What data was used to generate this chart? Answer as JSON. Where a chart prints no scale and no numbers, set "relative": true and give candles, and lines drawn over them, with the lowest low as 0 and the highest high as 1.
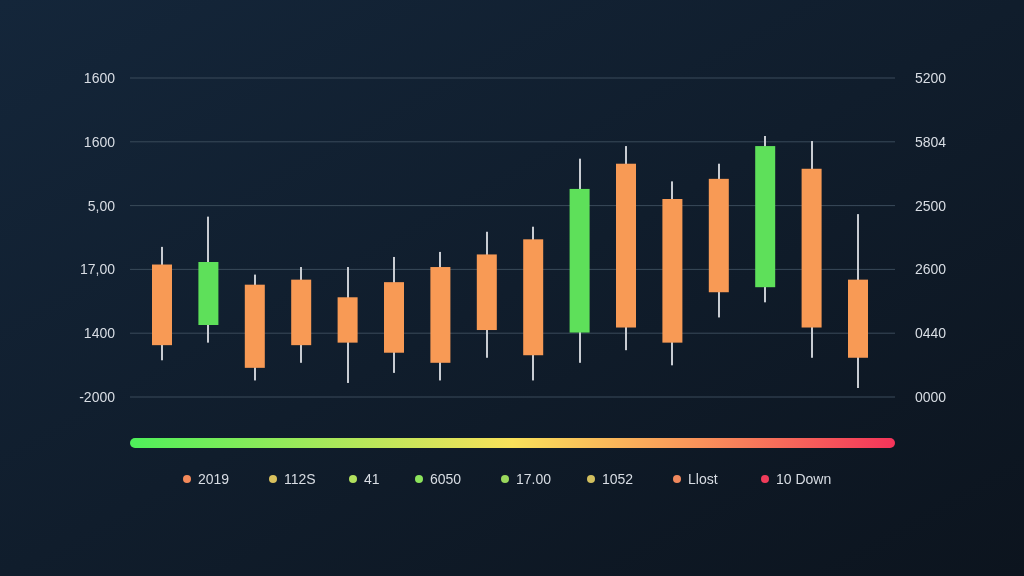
{
  "chart_data": {
    "type": "candlestick",
    "relative": true,
    "categories": [
      null,
      null,
      null,
      null,
      null,
      null,
      null,
      null,
      null,
      null,
      null,
      null,
      null,
      null,
      null,
      null
    ],
    "ohlc": [
      [
        0.49,
        0.56,
        0.11,
        0.17
      ],
      [
        0.25,
        0.68,
        0.18,
        0.5
      ],
      [
        0.41,
        0.45,
        0.03,
        0.08
      ],
      [
        0.43,
        0.48,
        0.1,
        0.17
      ],
      [
        0.36,
        0.48,
        0.02,
        0.18
      ],
      [
        0.42,
        0.52,
        0.06,
        0.14
      ],
      [
        0.48,
        0.54,
        0.03,
        0.1
      ],
      [
        0.53,
        0.62,
        0.12,
        0.23
      ],
      [
        0.59,
        0.64,
        0.03,
        0.13
      ],
      [
        0.22,
        0.91,
        0.1,
        0.79
      ],
      [
        0.89,
        0.96,
        0.15,
        0.24
      ],
      [
        0.75,
        0.82,
        0.09,
        0.18
      ],
      [
        0.83,
        0.89,
        0.28,
        0.38
      ],
      [
        0.4,
        1,
        0.34,
        0.96
      ],
      [
        0.87,
        0.98,
        0.12,
        0.24
      ],
      [
        0.43,
        0.69,
        0,
        0.12
      ]
    ],
    "colors": [
      "#f89a55",
      "#5ee05a",
      "#f89a55",
      "#f89a55",
      "#f89a55",
      "#f89a55",
      "#f89a55",
      "#f89a55",
      "#f89a55",
      "#5ee05a",
      "#f89a55",
      "#f89a55",
      "#f89a55",
      "#5ee05a",
      "#f89a55",
      "#f89a55"
    ],
    "grid": true,
    "annotations": [
      "1600",
      "1600",
      "5,00",
      "17,00",
      "1400",
      "-2000",
      "5200",
      "5804",
      "2500",
      "2600",
      "0440",
      "0000",
      "2019",
      "112S",
      "41",
      "6050",
      "17.00",
      "1052",
      "Llost",
      "10 Down"
    ]
  }
}
